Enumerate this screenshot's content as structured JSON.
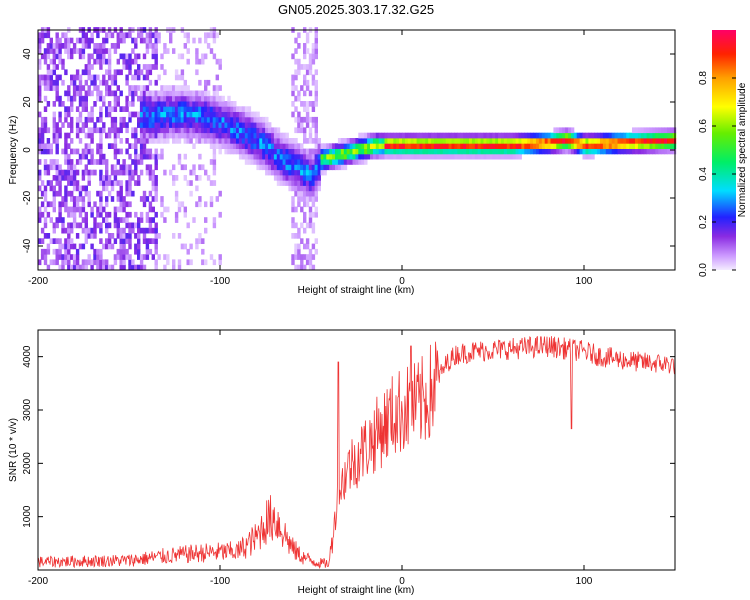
{
  "title": "GN05.2025.303.17.32.G25",
  "chart_data": [
    {
      "type": "heatmap",
      "name": "spectrogram",
      "xlabel": "Height of straight line (km)",
      "ylabel": "Frequency (Hz)",
      "xlim": [
        -200,
        150
      ],
      "ylim": [
        -50,
        50
      ],
      "xticks": [
        -200,
        -100,
        0,
        100
      ],
      "yticks": [
        -40,
        -20,
        0,
        20,
        40
      ],
      "colorbar": {
        "label": "Normalized spectral amplitude",
        "range": [
          0,
          1
        ],
        "ticks": [
          0.0,
          0.2,
          0.4,
          0.6,
          0.8
        ]
      },
      "ridge": {
        "x": [
          -140,
          -130,
          -120,
          -110,
          -100,
          -90,
          -80,
          -70,
          -60,
          -50,
          -45,
          -40,
          -35,
          -30,
          -25,
          -20,
          -15,
          -10,
          0,
          20,
          40,
          60,
          80,
          90,
          100,
          120,
          150
        ],
        "y": [
          13,
          14,
          14,
          13,
          10,
          7,
          3,
          -3,
          -8,
          -12,
          -5,
          -4,
          -3,
          -2,
          -1,
          0,
          1,
          1,
          1,
          1,
          1,
          1,
          2,
          3,
          1,
          2,
          3
        ]
      }
    },
    {
      "type": "line",
      "name": "snr",
      "xlabel": "Height of straight line (km)",
      "ylabel": "SNR (10 * v/v)",
      "xlim": [
        -200,
        150
      ],
      "ylim": [
        0,
        4500
      ],
      "xticks": [
        -200,
        -100,
        0,
        100
      ],
      "yticks": [
        1000,
        2000,
        3000,
        4000
      ],
      "color": "#ee3333",
      "envelope": {
        "x": [
          -200,
          -150,
          -130,
          -110,
          -90,
          -80,
          -75,
          -70,
          -65,
          -60,
          -55,
          -50,
          -45,
          -40,
          -38,
          -35,
          -30,
          -25,
          -20,
          -15,
          -10,
          -5,
          0,
          5,
          10,
          15,
          20,
          25,
          30,
          40,
          60,
          80,
          90,
          100,
          110,
          120,
          130,
          150
        ],
        "y": [
          150,
          180,
          260,
          320,
          350,
          600,
          900,
          1000,
          700,
          400,
          250,
          180,
          130,
          120,
          700,
          1400,
          1900,
          2100,
          2300,
          2500,
          2700,
          2900,
          3000,
          3050,
          3100,
          3300,
          3600,
          3900,
          4050,
          4100,
          4150,
          4200,
          4150,
          4100,
          4000,
          3950,
          3900,
          3850
        ]
      },
      "spikes": [
        {
          "x": -35,
          "y": 3900
        },
        {
          "x": 5,
          "y": 4200
        },
        {
          "x": 93,
          "y": 2650
        }
      ]
    }
  ]
}
